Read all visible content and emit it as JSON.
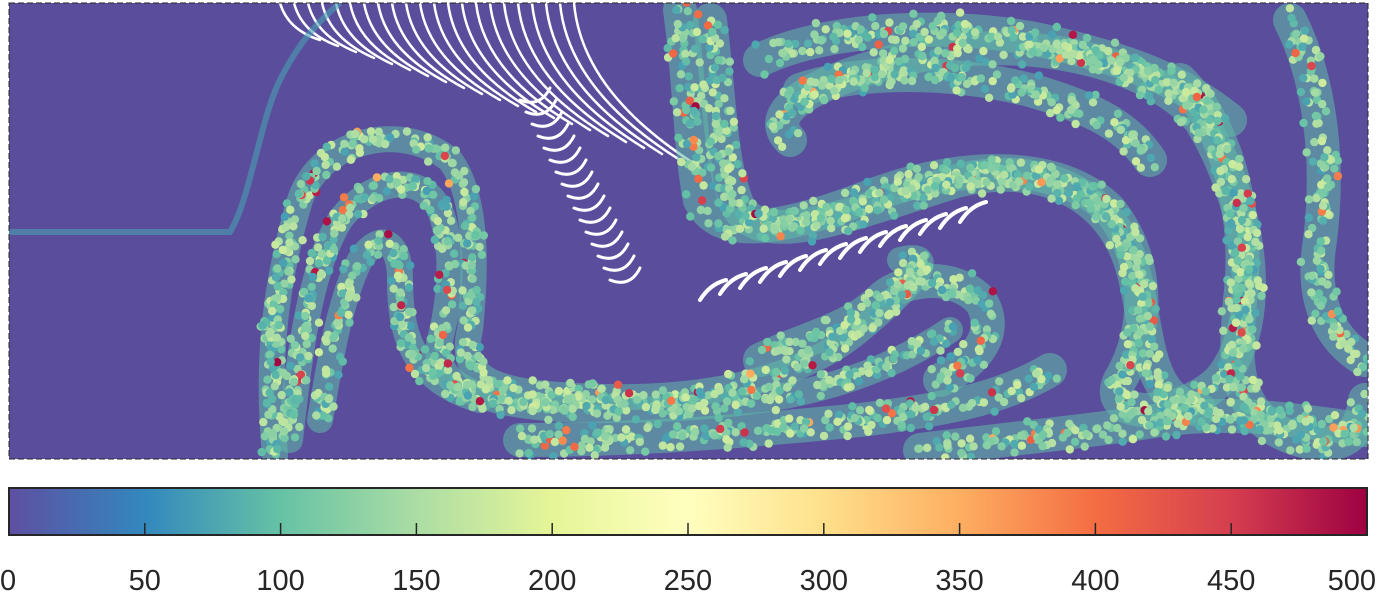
{
  "chart_data": {
    "type": "heatmap",
    "title": "",
    "xlabel": "",
    "ylabel": "",
    "description_values": "particle scatter field colored by scalar value",
    "colorbar": {
      "orientation": "horizontal",
      "range": [
        0,
        500
      ],
      "ticks": [
        0,
        50,
        100,
        150,
        200,
        250,
        300,
        350,
        400,
        450,
        500
      ],
      "tick_labels": [
        "0",
        "50",
        "100",
        "150",
        "200",
        "250",
        "300",
        "350",
        "400",
        "450",
        "500"
      ],
      "colormap": "Spectral (reversed)",
      "colormap_stops": [
        [
          0.0,
          "#5E4FA2"
        ],
        [
          0.1,
          "#3288BD"
        ],
        [
          0.2,
          "#66C2A5"
        ],
        [
          0.3,
          "#ABDDA4"
        ],
        [
          0.4,
          "#E6F598"
        ],
        [
          0.5,
          "#FFFFBF"
        ],
        [
          0.6,
          "#FEE08B"
        ],
        [
          0.7,
          "#FDAE61"
        ],
        [
          0.8,
          "#F46D43"
        ],
        [
          0.9,
          "#D53E4F"
        ],
        [
          1.0,
          "#9E0142"
        ]
      ]
    },
    "domain_background_value": 0,
    "rolled_band_typical_values": [
      100,
      180
    ],
    "hot_particle_values": [
      350,
      500
    ],
    "grid": false
  },
  "colors": {
    "background": "#5A4E9C",
    "frame": "#262626",
    "void": "#ffffff"
  }
}
